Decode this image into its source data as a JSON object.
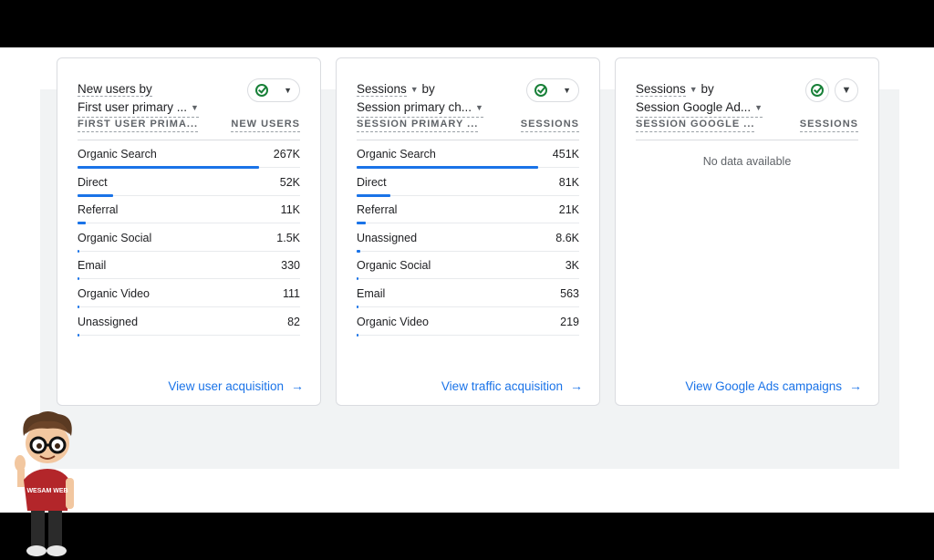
{
  "cards": [
    {
      "title_line1": "New users by",
      "title_line2": "First user primary ...",
      "col_left": "FIRST USER PRIMA...",
      "col_right": "NEW USERS",
      "rows": [
        {
          "label": "Organic Search",
          "value": "267K",
          "fraction": 0.81
        },
        {
          "label": "Direct",
          "value": "52K",
          "fraction": 0.16
        },
        {
          "label": "Referral",
          "value": "11K",
          "fraction": 0.035
        },
        {
          "label": "Organic Social",
          "value": "1.5K",
          "fraction": 0.005
        },
        {
          "label": "Email",
          "value": "330",
          "fraction": 0.001
        },
        {
          "label": "Organic Video",
          "value": "111",
          "fraction": 0.0004
        },
        {
          "label": "Unassigned",
          "value": "82",
          "fraction": 0.0003
        }
      ],
      "link": "View user acquisition"
    },
    {
      "title_line1": "Sessions",
      "title_line1_suffix": "by",
      "title_line2": "Session primary ch...",
      "col_left": "SESSION PRIMARY ...",
      "col_right": "SESSIONS",
      "rows": [
        {
          "label": "Organic Search",
          "value": "451K",
          "fraction": 0.81
        },
        {
          "label": "Direct",
          "value": "81K",
          "fraction": 0.15
        },
        {
          "label": "Referral",
          "value": "21K",
          "fraction": 0.04
        },
        {
          "label": "Unassigned",
          "value": "8.6K",
          "fraction": 0.016
        },
        {
          "label": "Organic Social",
          "value": "3K",
          "fraction": 0.006
        },
        {
          "label": "Email",
          "value": "563",
          "fraction": 0.001
        },
        {
          "label": "Organic Video",
          "value": "219",
          "fraction": 0.0004
        }
      ],
      "link": "View traffic acquisition"
    },
    {
      "title_line1": "Sessions",
      "title_line1_suffix": "by",
      "title_line2": "Session Google Ad...",
      "col_left": "SESSION GOOGLE ...",
      "col_right": "SESSIONS",
      "empty_text": "No data available",
      "link": "View Google Ads campaigns"
    }
  ],
  "mascot_shirt_text": "WESAM WEB",
  "icons": {
    "status": "check-circle-icon",
    "dropdown": "chevron-down-icon",
    "filter": "filter-icon",
    "link_arrow": "arrow-right-icon"
  },
  "colors": {
    "accent": "#1a73e8",
    "check": "#188038"
  }
}
